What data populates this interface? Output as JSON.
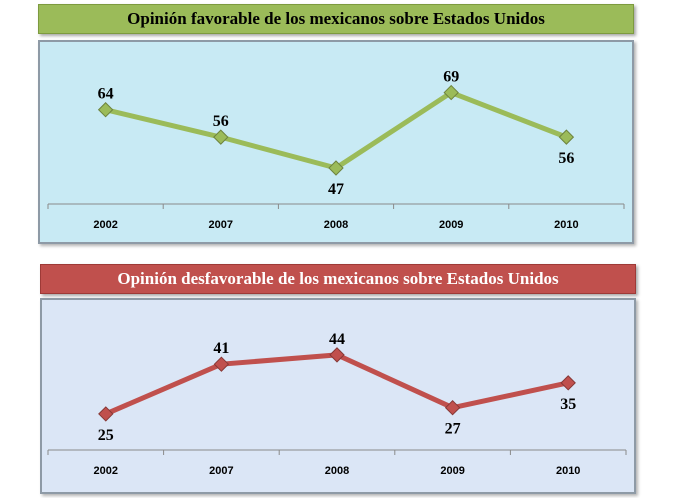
{
  "chart_data": [
    {
      "type": "line",
      "title": "Opinión favorable de los mexicanos sobre Estados Unidos",
      "categories": [
        "2002",
        "2007",
        "2008",
        "2009",
        "2010"
      ],
      "series": [
        {
          "values": [
            64,
            56,
            47,
            69,
            56
          ]
        }
      ],
      "ylim": [
        40,
        75
      ],
      "label_positions": [
        "above",
        "above",
        "below",
        "above",
        "below"
      ],
      "color": "#9bbb59",
      "background": "#c8eaf4",
      "grid": false,
      "y_axis_visible": false
    },
    {
      "type": "line",
      "title": "Opinión desfavorable de los mexicanos sobre Estados Unidos",
      "categories": [
        "2002",
        "2007",
        "2008",
        "2009",
        "2010"
      ],
      "series": [
        {
          "values": [
            25,
            41,
            44,
            27,
            35
          ]
        }
      ],
      "ylim": [
        15,
        52
      ],
      "label_positions": [
        "below",
        "above",
        "above",
        "below",
        "below"
      ],
      "color": "#c0504d",
      "background": "#dbe6f6",
      "grid": false,
      "y_axis_visible": false
    }
  ]
}
